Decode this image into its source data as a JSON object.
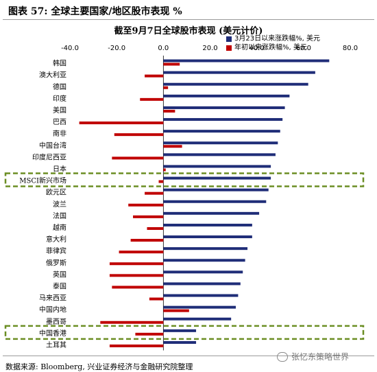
{
  "header": {
    "figure_title": "图表 57:  全球主要国家/地区股市表现  %"
  },
  "footer": {
    "source": "数据来源: Bloomberg, 兴业证券经济与金融研究院整理",
    "watermark": "张忆东策略世界"
  },
  "colors": {
    "navy": "#1f2d78",
    "red": "#c00000",
    "highlight": "#6b8e23"
  },
  "chart_data": {
    "type": "bar",
    "orientation": "horizontal",
    "title": "截至9月7日全球股市表现 (美元计价)",
    "xlim": [
      -40,
      80
    ],
    "xticks": [
      "-40.0",
      "-20.0",
      "0.0",
      "20.0",
      "40.0",
      "60.0",
      "80.0"
    ],
    "categories": [
      "韩国",
      "澳大利亚",
      "德国",
      "印度",
      "美国",
      "巴西",
      "南非",
      "中国台湾",
      "印度尼西亚",
      "日本",
      "MSCI新兴市场",
      "欧元区",
      "波兰",
      "法国",
      "越南",
      "意大利",
      "菲律宾",
      "俄罗斯",
      "英国",
      "泰国",
      "马来西亚",
      "中国内地",
      "墨西哥",
      "中国香港",
      "土耳其"
    ],
    "highlighted": [
      "MSCI新兴市场",
      "中国香港"
    ],
    "series": [
      {
        "name": "3月23日以来涨跌幅%, 美元",
        "values": [
          71,
          65,
          62,
          54,
          52,
          51,
          50,
          49,
          48,
          46,
          46,
          45,
          44,
          41,
          38,
          38,
          36,
          35,
          34,
          33,
          32,
          31,
          29,
          14,
          14
        ]
      },
      {
        "name": "年初以来涨跌幅%, 美元",
        "values": [
          7,
          -8,
          2,
          -10,
          5,
          -36,
          -21,
          8,
          -22,
          1,
          -2,
          -8,
          -15,
          -13,
          -7,
          -14,
          -19,
          -23,
          -23,
          -22,
          -6,
          11,
          -27,
          -12,
          -23
        ]
      }
    ]
  }
}
